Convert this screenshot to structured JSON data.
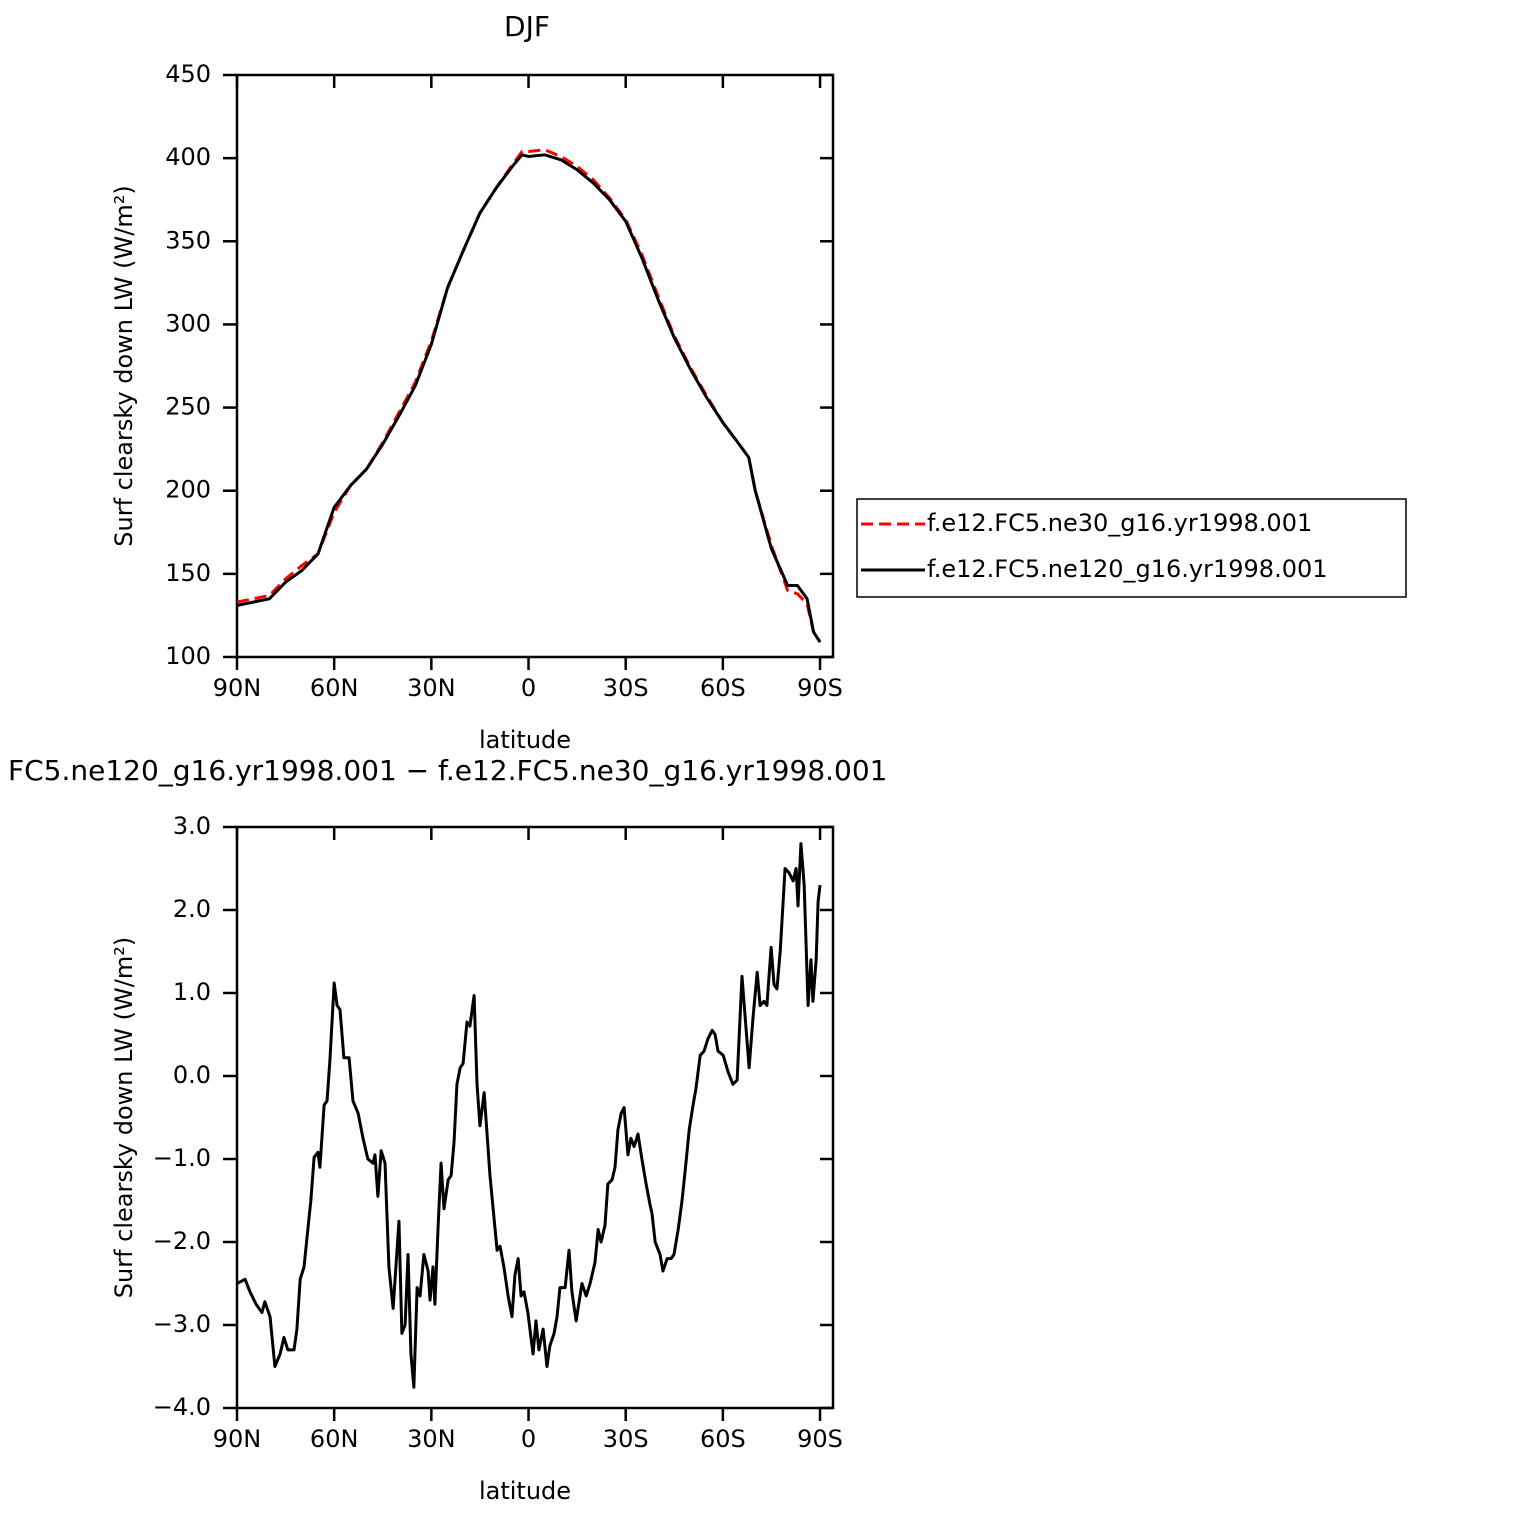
{
  "chart_data": [
    {
      "type": "line",
      "title": "DJF",
      "xlabel": "latitude",
      "ylabel": "Surf clearsky down LW (W/m²)",
      "x": [
        90,
        85,
        80,
        75,
        70,
        65,
        60,
        55,
        50,
        45,
        40,
        35,
        30,
        25,
        20,
        15,
        10,
        5,
        2,
        0,
        -5,
        -10,
        -15,
        -20,
        -25,
        -30,
        -35,
        -40,
        -45,
        -50,
        -55,
        -60,
        -65,
        -68,
        -70,
        -75,
        -80,
        -83,
        -86,
        -88,
        -90
      ],
      "series": [
        {
          "name": "f.e12.FC5.ne30_g16.yr1998.001",
          "color": "#ff0000",
          "style": "dashed",
          "values": [
            133,
            135,
            137,
            147,
            155,
            162,
            187,
            203,
            213,
            229,
            247,
            265,
            290,
            322,
            345,
            367,
            382,
            396,
            404,
            404,
            405,
            401,
            395,
            387,
            376,
            363,
            342,
            317,
            293,
            274,
            257,
            241,
            228,
            220,
            200,
            167,
            140,
            138,
            132,
            115,
            109
          ]
        },
        {
          "name": "f.e12.FC5.ne120_g16.yr1998.001",
          "color": "#000000",
          "style": "solid",
          "values": [
            131,
            133,
            135,
            145,
            152,
            162,
            190,
            203,
            213,
            228,
            245,
            263,
            288,
            322,
            345,
            367,
            382,
            395,
            402,
            401,
            402,
            399,
            393,
            385,
            375,
            362,
            340,
            315,
            292,
            273,
            256,
            241,
            228,
            220,
            200,
            165,
            143,
            143,
            135,
            115,
            109
          ]
        }
      ],
      "xlim": [
        90,
        -94
      ],
      "xticks": [
        {
          "value": 90,
          "label": "90N"
        },
        {
          "value": 60,
          "label": "60N"
        },
        {
          "value": 30,
          "label": "30N"
        },
        0,
        {
          "value": -30,
          "label": "30S"
        },
        {
          "value": -60,
          "label": "60S"
        },
        {
          "value": -90,
          "label": "90S"
        }
      ],
      "ylim": [
        100,
        450
      ],
      "yticks": [
        100,
        150,
        200,
        250,
        300,
        350,
        400,
        450
      ],
      "legend": "right"
    },
    {
      "type": "line",
      "title": "FC5.ne120_g16.yr1998.001 − f.e12.FC5.ne30_g16.yr1998.001",
      "xlabel": "latitude",
      "ylabel": "Surf clearsky down LW (W/m²)",
      "x": [
        90,
        87.5,
        86,
        84.1,
        82.3,
        81.4,
        79.8,
        78.3,
        76.7,
        75.5,
        74.3,
        72.4,
        71.5,
        70.5,
        69.3,
        68.4,
        67.2,
        66.2,
        65.0,
        64.4,
        63.1,
        62.2,
        61.3,
        60.0,
        59.1,
        58.2,
        57.0,
        55.4,
        54.2,
        52.6,
        51.1,
        49.6,
        48.0,
        47.4,
        46.5,
        45.5,
        44.3,
        43.1,
        41.8,
        40.6,
        40.0,
        39.1,
        38.1,
        37.2,
        36.3,
        35.4,
        34.4,
        33.5,
        32.3,
        31.0,
        30.4,
        29.5,
        28.9,
        27.9,
        27.0,
        26.1,
        24.8,
        23.9,
        23.0,
        22.1,
        21.1,
        20.2,
        19.0,
        18.1,
        16.8,
        15.9,
        15.0,
        13.7,
        11.9,
        9.7,
        8.8,
        7.6,
        6.3,
        5.1,
        4.2,
        3.2,
        2.3,
        1.4,
        0.2,
        -1.4,
        -2.3,
        -3.2,
        -4.5,
        -5.7,
        -6.6,
        -7.9,
        -8.8,
        -9.7,
        -11.3,
        -12.5,
        -13.4,
        -14.7,
        -16.5,
        -17.8,
        -19.0,
        -20.5,
        -21.5,
        -22.4,
        -23.6,
        -24.5,
        -25.8,
        -26.7,
        -27.6,
        -28.6,
        -29.5,
        -30.7,
        -31.6,
        -32.6,
        -33.8,
        -35.0,
        -36.3,
        -37.5,
        -38.1,
        -39.1,
        -40.6,
        -41.5,
        -42.8,
        -44.0,
        -44.9,
        -46.2,
        -47.4,
        -48.6,
        -49.6,
        -50.8,
        -51.7,
        -53.0,
        -54.2,
        -55.4,
        -56.7,
        -57.6,
        -58.5,
        -60.1,
        -61.6,
        -63.1,
        -64.4,
        -65.9,
        -66.8,
        -68.1,
        -69.3,
        -70.6,
        -71.5,
        -72.7,
        -73.6,
        -74.9,
        -75.8,
        -76.7,
        -77.7,
        -79.2,
        -80.4,
        -81.7,
        -82.6,
        -83.2,
        -84.1,
        -85.1,
        -86.3,
        -87.2,
        -87.8,
        -88.8,
        -89.4,
        -90
      ],
      "series": [
        {
          "color": "#000000",
          "style": "solid",
          "values": [
            -2.5,
            -2.45,
            -2.6,
            -2.75,
            -2.85,
            -2.72,
            -2.9,
            -3.5,
            -3.35,
            -3.15,
            -3.3,
            -3.3,
            -3.05,
            -2.45,
            -2.3,
            -1.95,
            -1.5,
            -0.98,
            -0.92,
            -1.1,
            -0.35,
            -0.3,
            0.2,
            1.12,
            0.85,
            0.8,
            0.22,
            0.22,
            -0.3,
            -0.45,
            -0.75,
            -1.0,
            -1.05,
            -0.95,
            -1.45,
            -0.9,
            -1.05,
            -2.3,
            -2.8,
            -2.1,
            -1.75,
            -3.1,
            -3.0,
            -2.15,
            -3.35,
            -3.75,
            -2.55,
            -2.65,
            -2.15,
            -2.35,
            -2.7,
            -2.3,
            -2.75,
            -1.8,
            -1.05,
            -1.6,
            -1.25,
            -1.2,
            -0.8,
            -0.1,
            0.1,
            0.15,
            0.65,
            0.6,
            0.97,
            -0.1,
            -0.6,
            -0.2,
            -1.2,
            -2.1,
            -2.05,
            -2.3,
            -2.65,
            -2.9,
            -2.4,
            -2.2,
            -2.65,
            -2.6,
            -2.85,
            -3.35,
            -2.95,
            -3.3,
            -3.05,
            -3.5,
            -3.25,
            -3.1,
            -2.9,
            -2.55,
            -2.55,
            -2.1,
            -2.6,
            -2.95,
            -2.5,
            -2.65,
            -2.5,
            -2.25,
            -1.85,
            -2.0,
            -1.8,
            -1.3,
            -1.25,
            -1.1,
            -0.65,
            -0.45,
            -0.38,
            -0.95,
            -0.75,
            -0.85,
            -0.7,
            -1.0,
            -1.3,
            -1.55,
            -1.65,
            -2.0,
            -2.15,
            -2.35,
            -2.2,
            -2.2,
            -2.15,
            -1.85,
            -1.5,
            -1.05,
            -0.65,
            -0.35,
            -0.15,
            0.25,
            0.3,
            0.45,
            0.55,
            0.5,
            0.3,
            0.25,
            0.05,
            -0.1,
            -0.05,
            1.2,
            0.75,
            0.1,
            0.7,
            1.25,
            0.85,
            0.9,
            0.85,
            1.55,
            1.1,
            1.05,
            1.5,
            2.5,
            2.45,
            2.35,
            2.5,
            2.05,
            2.8,
            2.3,
            0.85,
            1.4,
            0.9,
            1.4,
            2.1,
            2.3
          ]
        }
      ],
      "xlim": [
        90,
        -94
      ],
      "xticks": [
        {
          "value": 90,
          "label": "90N"
        },
        {
          "value": 60,
          "label": "60N"
        },
        {
          "value": 30,
          "label": "30N"
        },
        0,
        {
          "value": -30,
          "label": "30S"
        },
        {
          "value": -60,
          "label": "60S"
        },
        {
          "value": -90,
          "label": "90S"
        }
      ],
      "ylim": [
        -4,
        3
      ],
      "yticks": [
        {
          "value": 3,
          "label": "3.0"
        },
        {
          "value": 2,
          "label": "2.0"
        },
        {
          "value": 1,
          "label": "1.0"
        },
        {
          "value": 0,
          "label": "0.0"
        },
        {
          "value": -1,
          "label": "−1.0"
        },
        {
          "value": -2,
          "label": "−2.0"
        },
        {
          "value": -3,
          "label": "−3.0"
        },
        {
          "value": -4,
          "label": "−4.0"
        }
      ]
    }
  ]
}
